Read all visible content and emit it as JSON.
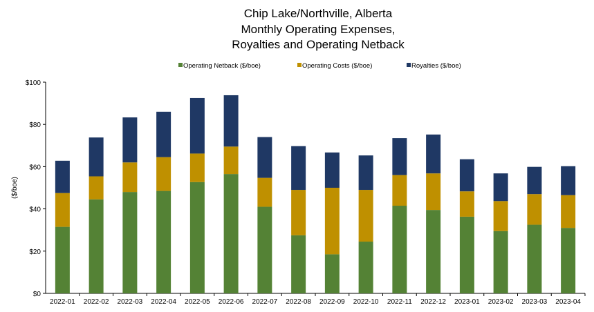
{
  "chart_data": {
    "type": "bar",
    "stacked": true,
    "title_lines": [
      "Chip Lake/Northville, Alberta",
      "Monthly Operating Expenses,",
      "Royalties and Operating Netback"
    ],
    "ylabel": "($/boe)",
    "xlabel": "",
    "ylim": [
      0,
      100
    ],
    "y_ticks": [
      "$0",
      "$20",
      "$40",
      "$60",
      "$80",
      "$100"
    ],
    "y_tick_values": [
      0,
      20,
      40,
      60,
      80,
      100
    ],
    "legend_position": "top",
    "grid": false,
    "categories": [
      "2022-01",
      "2022-02",
      "2022-03",
      "2022-04",
      "2022-05",
      "2022-06",
      "2022-07",
      "2022-08",
      "2022-09",
      "2022-10",
      "2022-11",
      "2022-12",
      "2023-01",
      "2023-02",
      "2023-03",
      "2023-04"
    ],
    "series": [
      {
        "name": "Operating Netback ($/boe)",
        "color": "#548235",
        "values": [
          31.5,
          44.5,
          48,
          48.5,
          52.7,
          56.5,
          41,
          27.5,
          18.5,
          24.5,
          41.5,
          39.5,
          36.3,
          29.5,
          32.5,
          31
        ]
      },
      {
        "name": "Operating Costs ($/boe)",
        "color": "#BF9000",
        "values": [
          16,
          10.9,
          14,
          16,
          13.5,
          13,
          13.7,
          21.5,
          31.5,
          24.5,
          14.5,
          17.3,
          12,
          14.2,
          14.5,
          15.5
        ]
      },
      {
        "name": "Royalties ($/boe)",
        "color": "#1F3864",
        "values": [
          15.3,
          18.4,
          21.3,
          21.5,
          26.3,
          24.3,
          19.3,
          20.7,
          16.7,
          16.3,
          17.5,
          18.4,
          15.2,
          13.1,
          12.9,
          13.7
        ]
      }
    ]
  }
}
